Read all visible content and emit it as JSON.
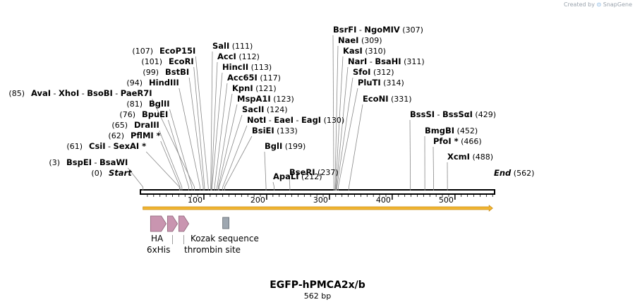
{
  "credit": {
    "text": "Created by",
    "logo_text": "SnapGene"
  },
  "sequence": {
    "name": "EGFP-hPMCA2x/b",
    "length_label": "562 bp",
    "length": 562
  },
  "ruler": {
    "ticks": [
      "100",
      "200",
      "300",
      "400",
      "500"
    ]
  },
  "sites": [
    {
      "names": [
        "BsrFI",
        "NgoMIV"
      ],
      "pos": 307
    },
    {
      "names": [
        "NaeI"
      ],
      "pos": 309
    },
    {
      "names": [
        "KasI"
      ],
      "pos": 310
    },
    {
      "names": [
        "NarI",
        "BsaHI"
      ],
      "pos": 311
    },
    {
      "names": [
        "SfoI"
      ],
      "pos": 312
    },
    {
      "names": [
        "PluTI"
      ],
      "pos": 314
    },
    {
      "names": [
        "EcoNI"
      ],
      "pos": 331
    },
    {
      "names": [
        "SalI"
      ],
      "pos": 111
    },
    {
      "names": [
        "AccI"
      ],
      "pos": 112
    },
    {
      "names": [
        "HincII"
      ],
      "pos": 113
    },
    {
      "names": [
        "Acc65I"
      ],
      "pos": 117
    },
    {
      "names": [
        "KpnI"
      ],
      "pos": 121
    },
    {
      "names": [
        "MspA1I"
      ],
      "pos": 123
    },
    {
      "names": [
        "SacII"
      ],
      "pos": 124
    },
    {
      "names": [
        "NotI",
        "EaeI",
        "EagI"
      ],
      "pos": 130
    },
    {
      "names": [
        "BsiEI"
      ],
      "pos": 133
    },
    {
      "names": [
        "BglI"
      ],
      "pos": 199
    },
    {
      "names": [
        "ApaLI"
      ],
      "pos": 212
    },
    {
      "names": [
        "BseRI"
      ],
      "pos": 237
    },
    {
      "names": [
        "EcoP15I"
      ],
      "pos": 107
    },
    {
      "names": [
        "EcoRI"
      ],
      "pos": 101
    },
    {
      "names": [
        "BstBI"
      ],
      "pos": 99
    },
    {
      "names": [
        "HindIII"
      ],
      "pos": 94
    },
    {
      "names": [
        "AvaI",
        "XhoI",
        "BsoBI",
        "PaeR7I"
      ],
      "pos": 85
    },
    {
      "names": [
        "BglII"
      ],
      "pos": 81
    },
    {
      "names": [
        "BpuEI"
      ],
      "pos": 76
    },
    {
      "names": [
        "DraIII"
      ],
      "pos": 65
    },
    {
      "names": [
        "PflMI *"
      ],
      "pos": 62
    },
    {
      "names": [
        "CsiI",
        "SexAI *"
      ],
      "pos": 61
    },
    {
      "names": [
        "BspEI",
        "BsaWI"
      ],
      "pos": 3
    },
    {
      "names": [
        "Start"
      ],
      "pos": 0,
      "special": true
    },
    {
      "names": [
        "BssSI",
        "BssSαI"
      ],
      "pos": 429
    },
    {
      "names": [
        "BmgBI"
      ],
      "pos": 452
    },
    {
      "names": [
        "PfoI *"
      ],
      "pos": 466
    },
    {
      "names": [
        "XcmI"
      ],
      "pos": 488
    },
    {
      "names": [
        "End"
      ],
      "pos": 562,
      "special": true
    }
  ],
  "features": [
    {
      "label": "HA",
      "start": 15,
      "end": 40,
      "type": "arrow",
      "color": "#c995b0"
    },
    {
      "label": "6xHis",
      "start": 42,
      "end": 58,
      "type": "arrow",
      "color": "#c995b0"
    },
    {
      "label": "thrombin site",
      "start": 60,
      "end": 76,
      "type": "arrow",
      "color": "#c995b0"
    },
    {
      "label": "Kozak sequence",
      "start": 130,
      "end": 140,
      "type": "box",
      "color": "#9ea7b0"
    }
  ],
  "orf": {
    "start": 3,
    "end": 560,
    "color": "#f2b632"
  }
}
